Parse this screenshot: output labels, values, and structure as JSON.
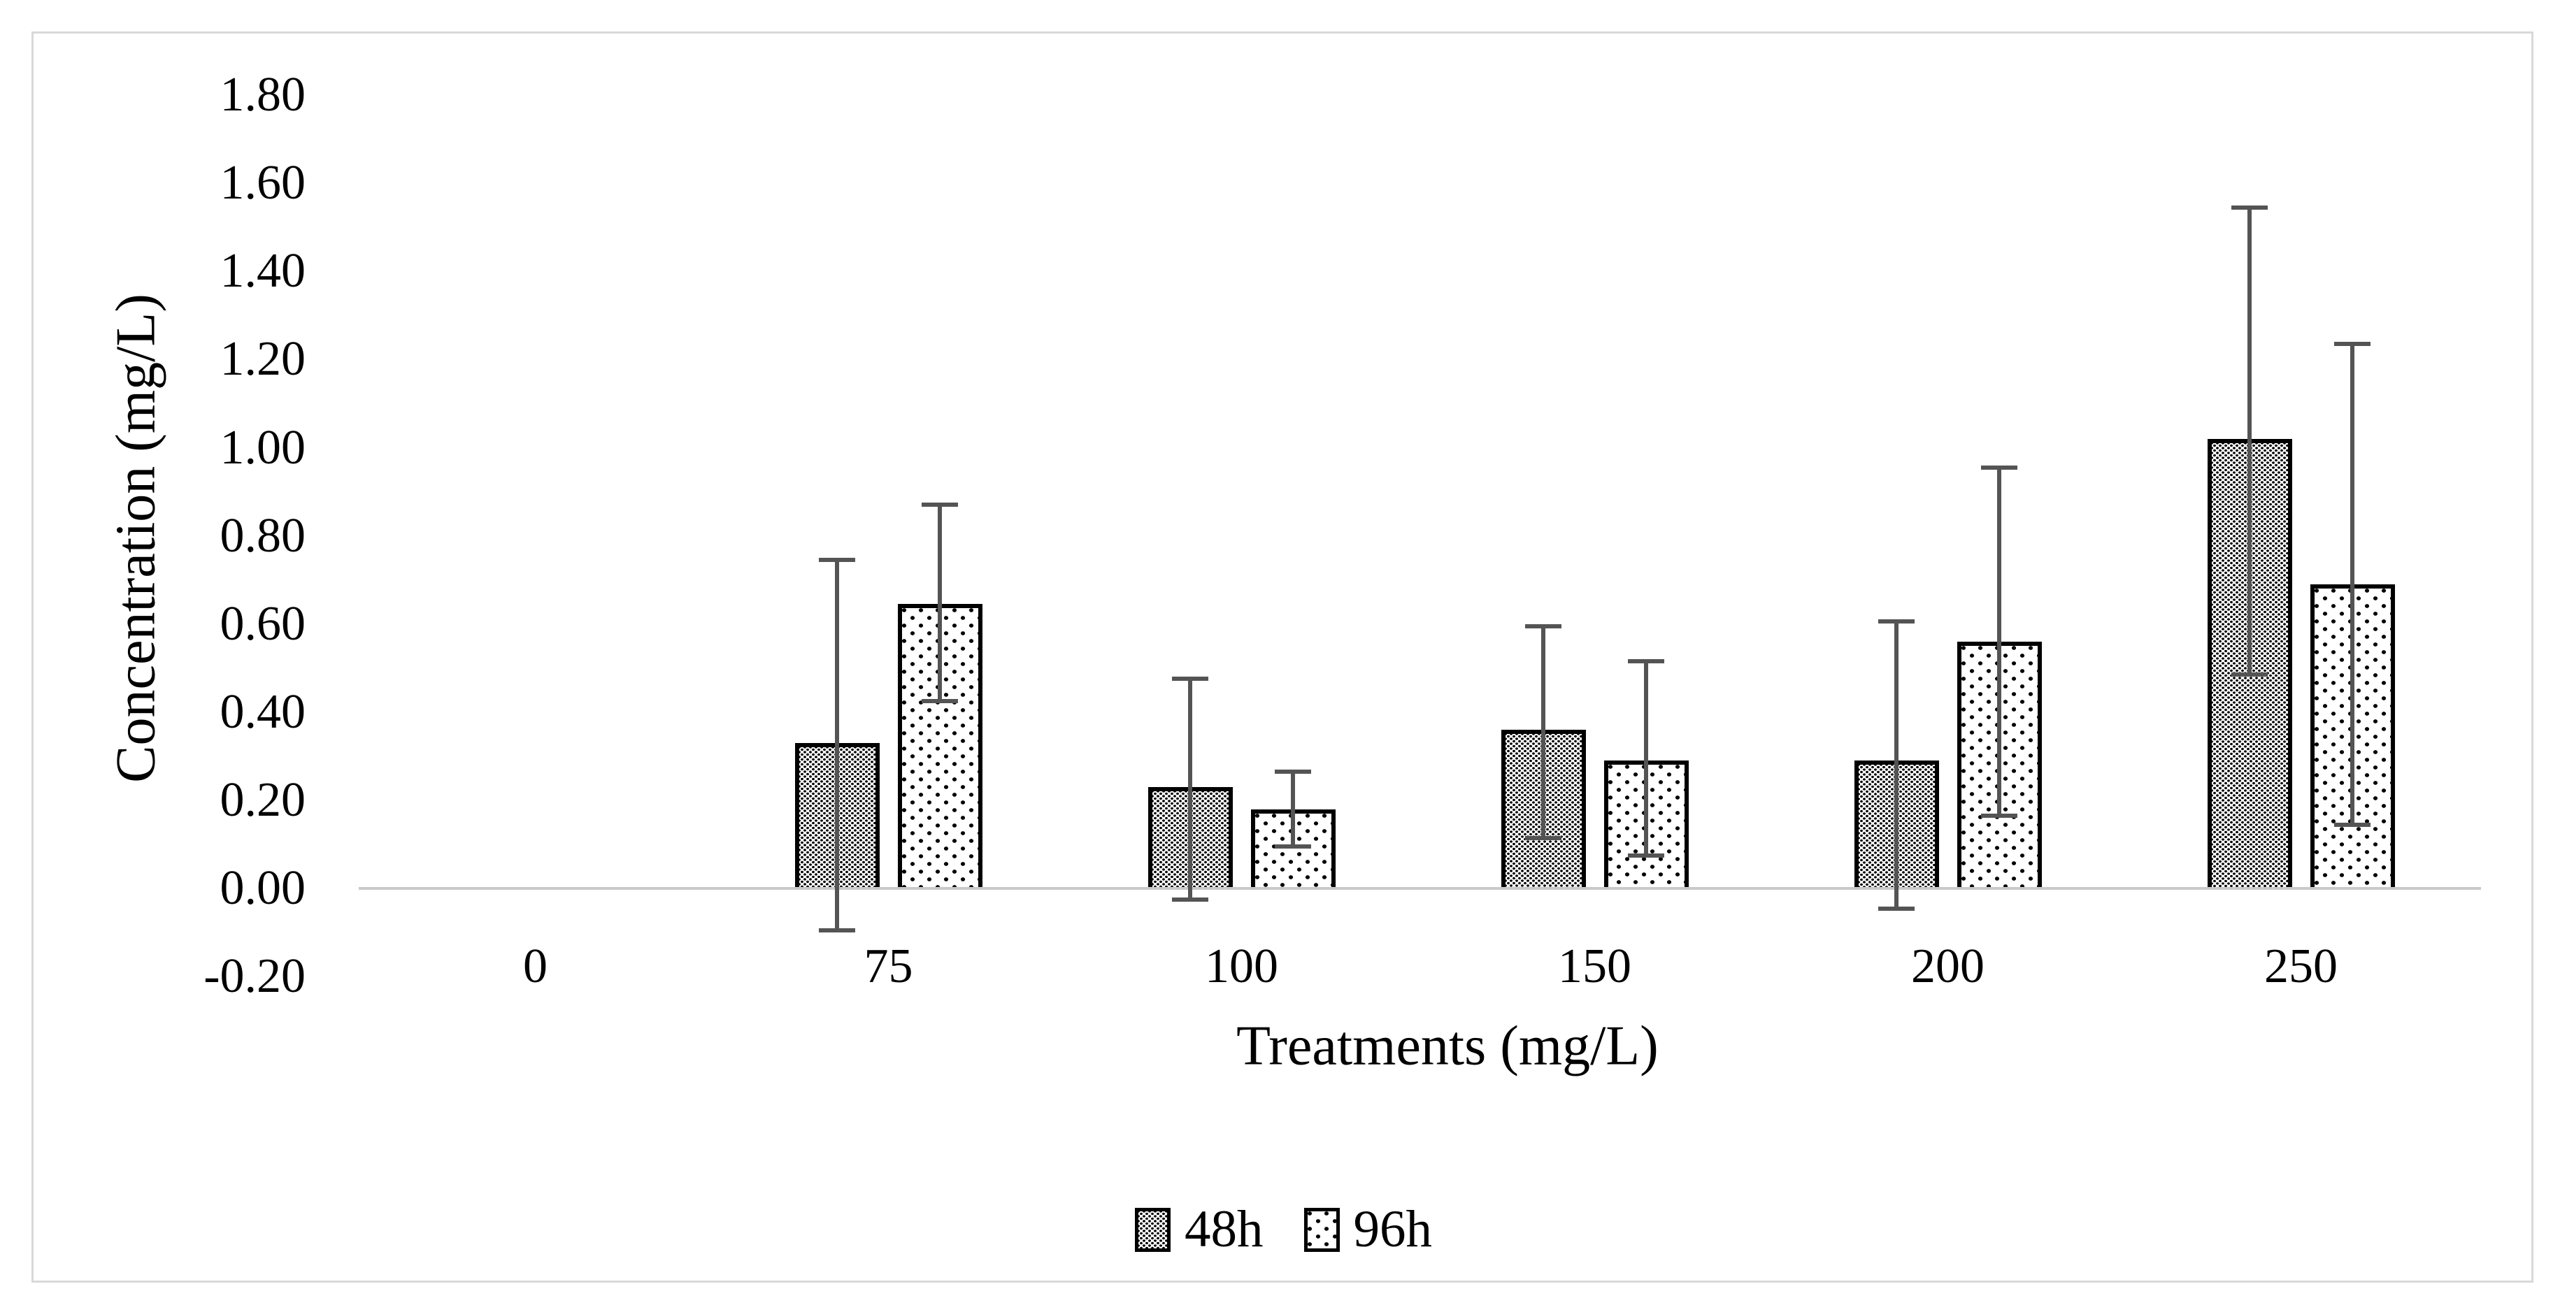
{
  "figure": {
    "y_axis": {
      "title": "Concentration (mg/L)",
      "tick_labels": [
        "1.80",
        "1.60",
        "1.40",
        "1.20",
        "1.00",
        "0.80",
        "0.60",
        "0.40",
        "0.20",
        "0.00",
        "-0.20"
      ]
    },
    "x_axis": {
      "title": "Treatments (mg/L)",
      "tick_labels": [
        "0",
        "75",
        "100",
        "150",
        "200",
        "250"
      ]
    },
    "legend": {
      "items": [
        "48h",
        "96h"
      ]
    }
  },
  "chart_data": {
    "type": "bar",
    "title": "",
    "categories": [
      "0",
      "75",
      "100",
      "150",
      "200",
      "250"
    ],
    "xlabel": "Treatments (mg/L)",
    "ylabel": "Concentration (mg/L)",
    "ylim": [
      -0.2,
      1.8
    ],
    "ytick_step": 0.2,
    "grid": false,
    "legend_position": "bottom-center",
    "bar_patterns": {
      "48h": "dense-dot-fill",
      "96h": "sparse-dot-fill"
    },
    "error_bar_color": "#545454",
    "axis_line_color": "#c9c9c9",
    "series": [
      {
        "name": "48h",
        "values": [
          0,
          0.33,
          0.23,
          0.36,
          0.29,
          1.02
        ],
        "error_low": [
          null,
          -0.1,
          -0.03,
          0.11,
          -0.05,
          0.48
        ],
        "error_high": [
          null,
          0.75,
          0.48,
          0.6,
          0.61,
          1.55
        ]
      },
      {
        "name": "96h",
        "values": [
          0,
          0.645,
          0.18,
          0.29,
          0.56,
          0.69
        ],
        "error_low": [
          null,
          0.42,
          0.09,
          0.07,
          0.16,
          0.14
        ],
        "error_high": [
          null,
          0.875,
          0.27,
          0.52,
          0.96,
          1.24
        ]
      }
    ]
  }
}
